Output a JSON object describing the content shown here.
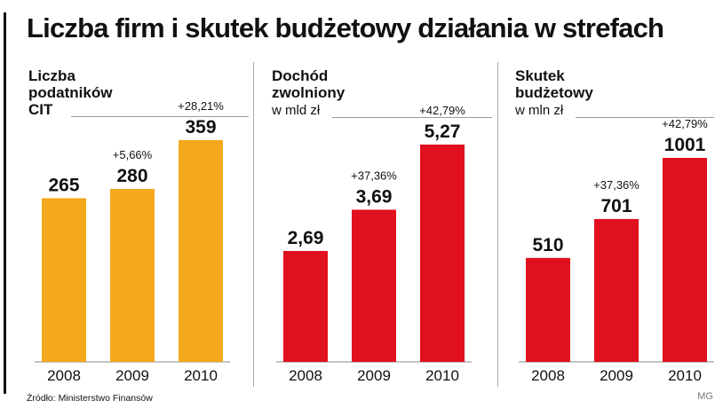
{
  "title": "Liczba firm i skutek budżetowy działania w strefach",
  "source": "Źródło: Ministerstwo Finansów",
  "credit": "MG",
  "chart_data": [
    {
      "type": "bar",
      "title": "Liczba\npodatników\nCIT",
      "unit": "",
      "categories": [
        "2008",
        "2009",
        "2010"
      ],
      "values": [
        265,
        280,
        359
      ],
      "value_labels": [
        "265",
        "280",
        "359"
      ],
      "changes": [
        "",
        "+5,66%",
        "+28,21%"
      ],
      "ylim": [
        0,
        359
      ],
      "color": "#f4a81c"
    },
    {
      "type": "bar",
      "title": "Dochód\nzwolniony",
      "unit": "w mld zł",
      "categories": [
        "2008",
        "2009",
        "2010"
      ],
      "values": [
        2.69,
        3.69,
        5.27
      ],
      "value_labels": [
        "2,69",
        "3,69",
        "5,27"
      ],
      "changes": [
        "",
        "+37,36%",
        "+42,79%"
      ],
      "ylim": [
        0,
        5.27
      ],
      "color": "#e0101e"
    },
    {
      "type": "bar",
      "title": "Skutek\nbudżetowy",
      "unit": "w mln zł",
      "categories": [
        "2008",
        "2009",
        "2010"
      ],
      "values": [
        510,
        701,
        1001
      ],
      "value_labels": [
        "510",
        "701",
        "1001"
      ],
      "changes": [
        "",
        "+37,36%",
        "+42,79%"
      ],
      "ylim": [
        0,
        1001
      ],
      "color": "#e0101e"
    }
  ]
}
